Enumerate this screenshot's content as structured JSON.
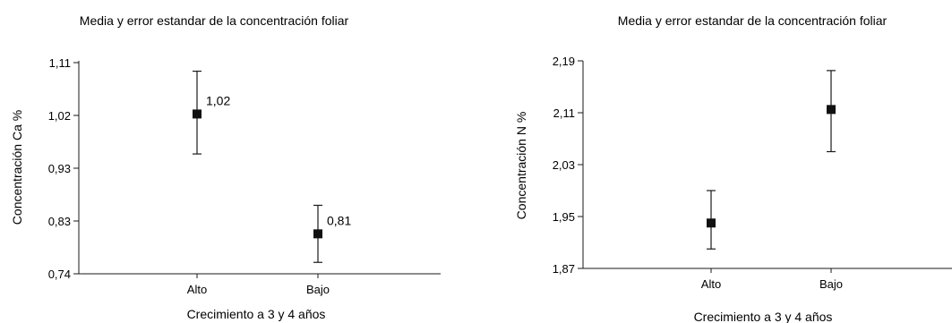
{
  "chart_data": [
    {
      "type": "scatter",
      "title": "Media y error estandar de la concentración foliar",
      "xlabel": "Crecimiento a 3 y 4 años",
      "ylabel": "Concentración Ca %",
      "categories": [
        "Alto",
        "Bajo"
      ],
      "yticks": [
        "0,74",
        "0,83",
        "0,93",
        "1,02",
        "1,11"
      ],
      "ylim": [
        0.74,
        1.11
      ],
      "grid": false,
      "series": [
        {
          "values": [
            1.02,
            0.81
          ],
          "error_low": [
            0.95,
            0.76
          ],
          "error_high": [
            1.095,
            0.86
          ],
          "value_labels": [
            "1,02",
            "0,81"
          ]
        }
      ]
    },
    {
      "type": "scatter",
      "title": "Media y error estandar de la concentración foliar",
      "xlabel": "Crecimiento a 3 y 4 años",
      "ylabel": "Concentración N %",
      "categories": [
        "Alto",
        "Bajo"
      ],
      "yticks": [
        "1,87",
        "1,95",
        "2,03",
        "2,11",
        "2,19"
      ],
      "ylim": [
        1.87,
        2.19
      ],
      "grid": false,
      "series": [
        {
          "values": [
            1.94,
            2.115
          ],
          "error_low": [
            1.9,
            2.05
          ],
          "error_high": [
            1.99,
            2.175
          ],
          "value_labels": []
        }
      ]
    }
  ]
}
